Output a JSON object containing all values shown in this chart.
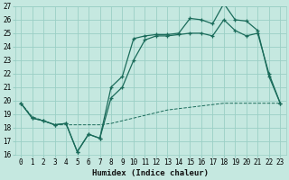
{
  "title": "",
  "xlabel": "Humidex (Indice chaleur)",
  "ylabel": "",
  "bg_color": "#c5e8e0",
  "grid_color": "#9acfc5",
  "line_color": "#1a6b5a",
  "xlim": [
    -0.5,
    23.5
  ],
  "ylim": [
    16,
    27
  ],
  "yticks": [
    16,
    17,
    18,
    19,
    20,
    21,
    22,
    23,
    24,
    25,
    26,
    27
  ],
  "xticks": [
    0,
    1,
    2,
    3,
    4,
    5,
    6,
    7,
    8,
    9,
    10,
    11,
    12,
    13,
    14,
    15,
    16,
    17,
    18,
    19,
    20,
    21,
    22,
    23
  ],
  "line1_x": [
    0,
    1,
    2,
    3,
    4,
    5,
    6,
    7,
    8,
    9,
    10,
    11,
    12,
    13,
    14,
    15,
    16,
    17,
    18,
    19,
    20,
    21,
    22,
    23
  ],
  "line1_y": [
    19.8,
    18.7,
    18.5,
    18.2,
    18.3,
    16.2,
    17.5,
    17.2,
    21.0,
    21.8,
    24.6,
    24.8,
    24.9,
    24.9,
    25.0,
    26.1,
    26.0,
    25.7,
    27.2,
    26.0,
    25.9,
    25.2,
    21.8,
    19.8
  ],
  "line2_x": [
    0,
    1,
    2,
    3,
    4,
    5,
    6,
    7,
    8,
    9,
    10,
    11,
    12,
    13,
    14,
    15,
    16,
    17,
    18,
    19,
    20,
    21,
    22,
    23
  ],
  "line2_y": [
    19.8,
    18.7,
    18.5,
    18.2,
    18.3,
    16.2,
    17.5,
    17.2,
    20.2,
    21.0,
    23.0,
    24.5,
    24.8,
    24.8,
    24.9,
    25.0,
    25.0,
    24.8,
    26.0,
    25.2,
    24.8,
    25.0,
    22.0,
    19.8
  ],
  "line3_x": [
    0,
    1,
    2,
    3,
    4,
    5,
    6,
    7,
    8,
    9,
    10,
    11,
    12,
    13,
    14,
    15,
    16,
    17,
    18,
    19,
    20,
    21,
    22,
    23
  ],
  "line3_y": [
    19.8,
    18.8,
    18.5,
    18.2,
    18.2,
    18.2,
    18.2,
    18.2,
    18.3,
    18.5,
    18.7,
    18.9,
    19.1,
    19.3,
    19.4,
    19.5,
    19.6,
    19.7,
    19.8,
    19.8,
    19.8,
    19.8,
    19.8,
    19.8
  ]
}
